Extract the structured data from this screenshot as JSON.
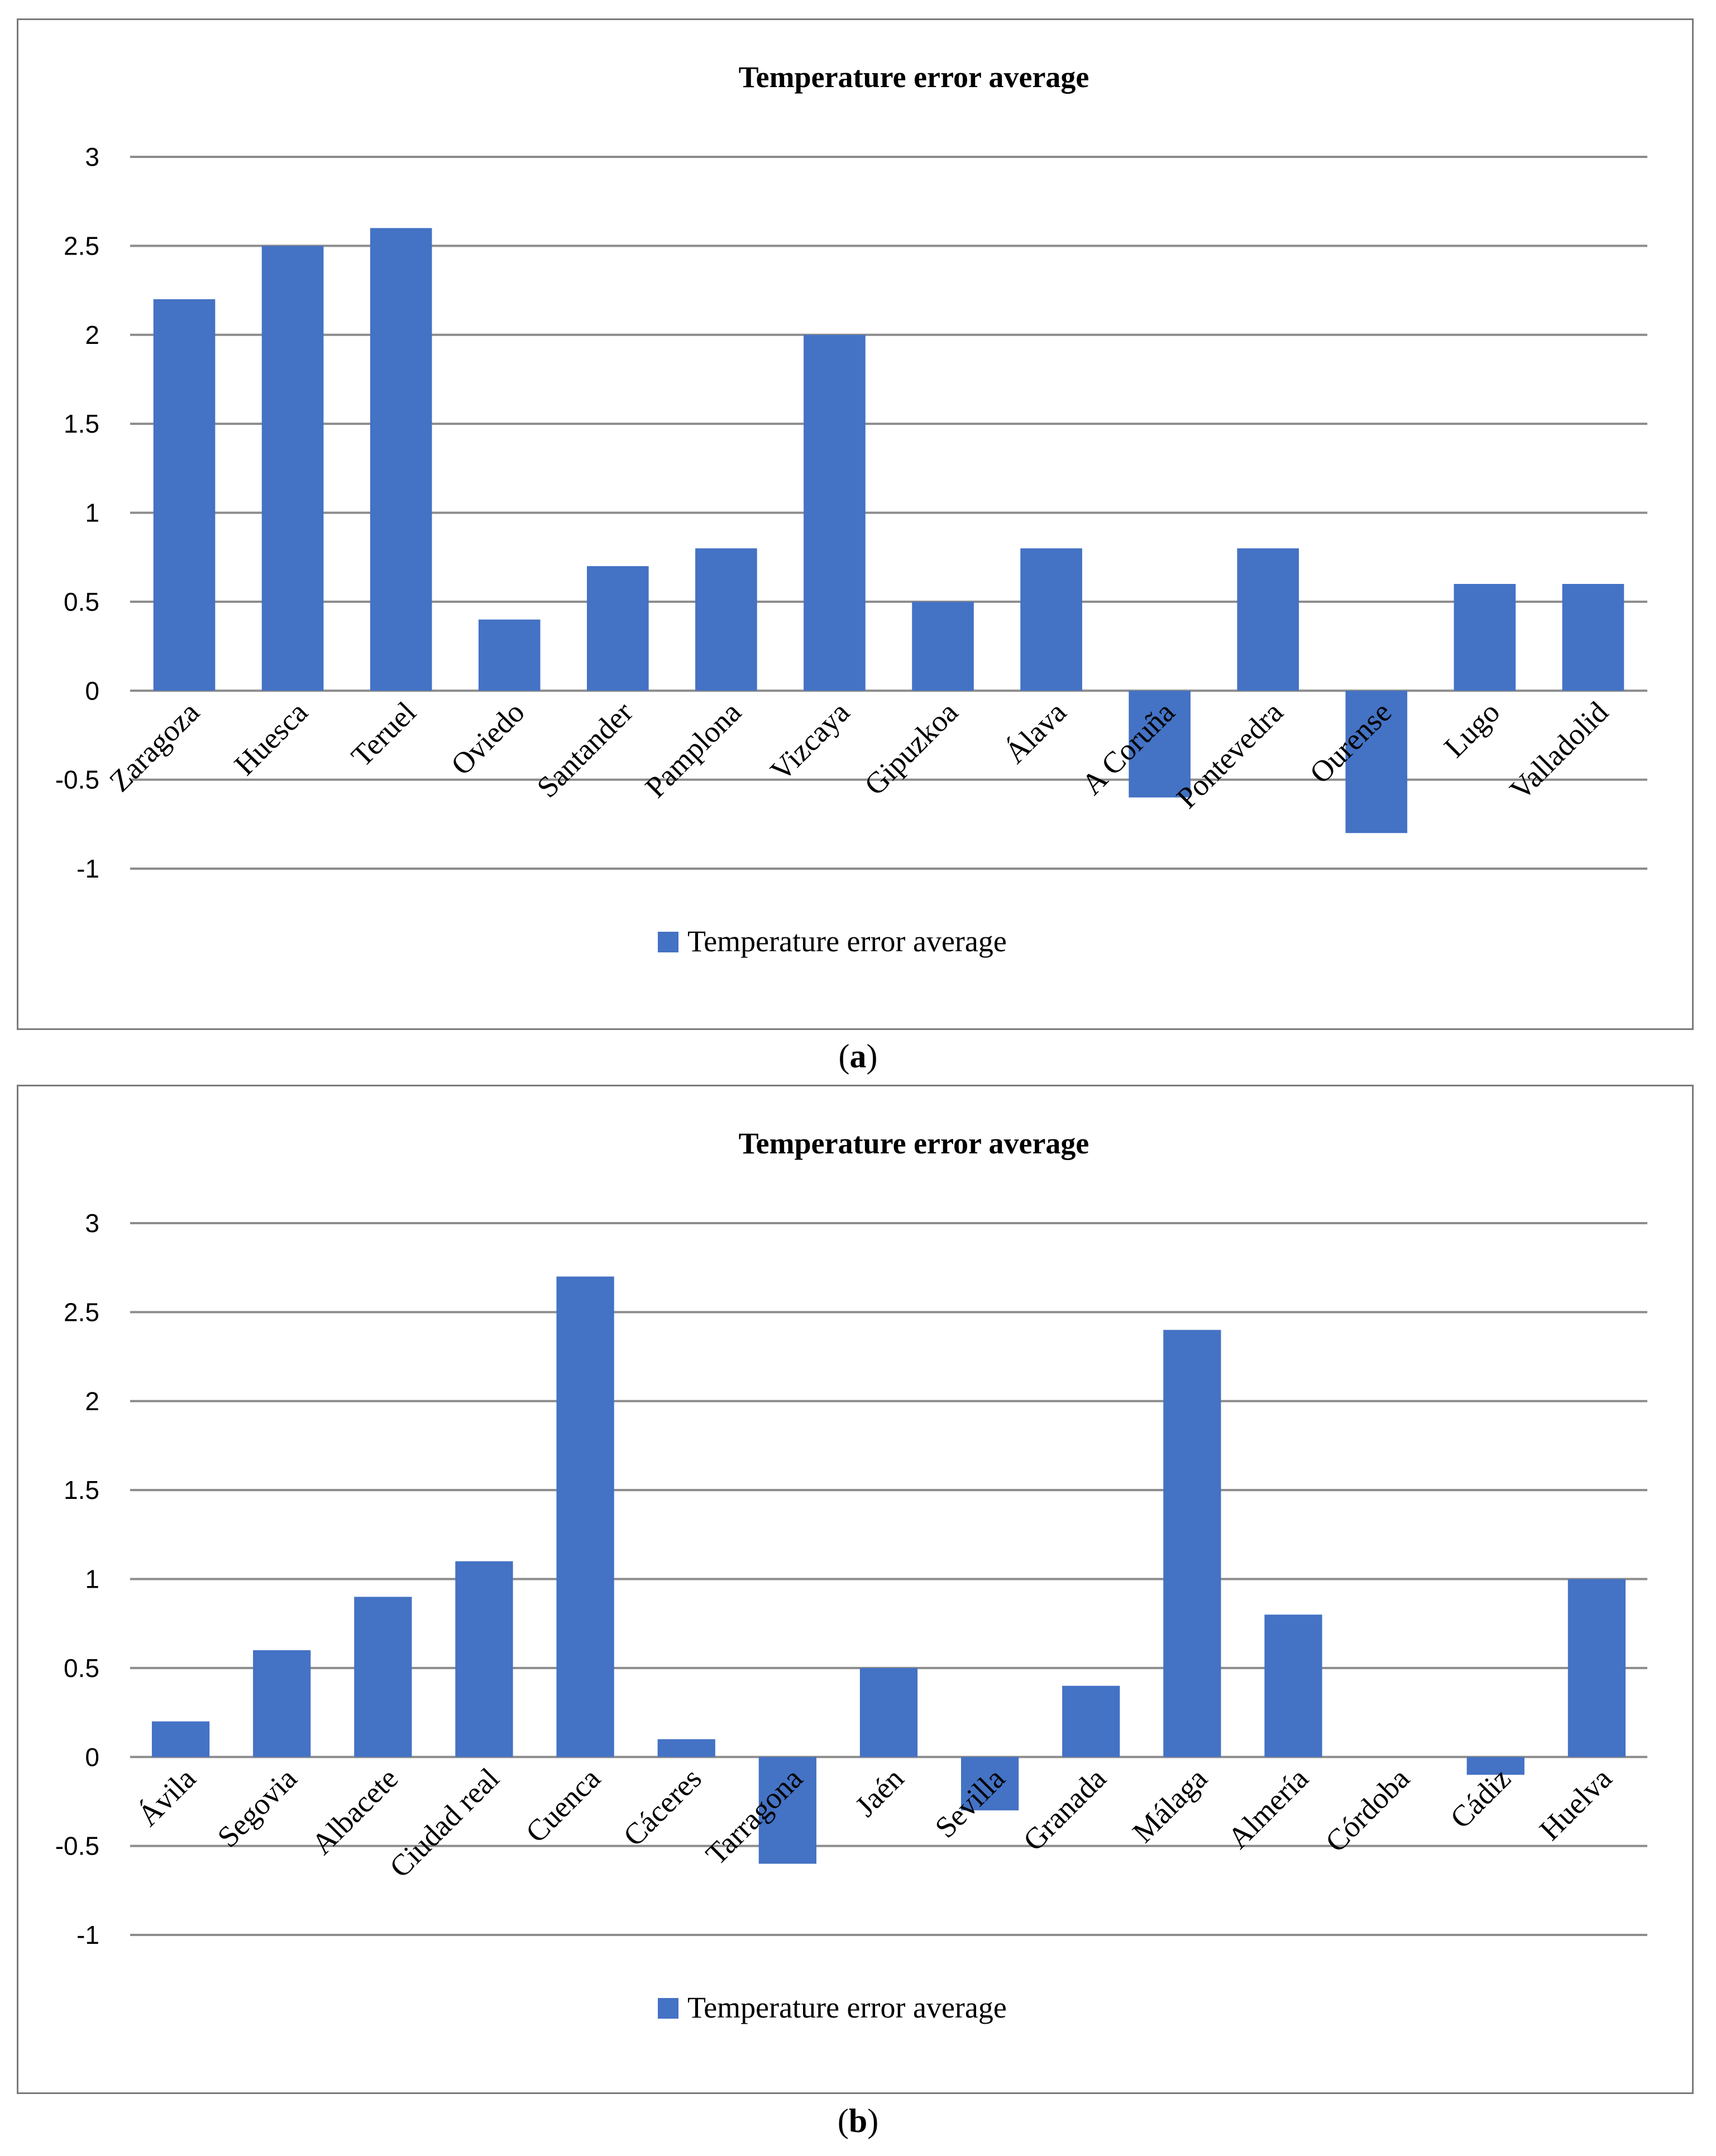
{
  "chart_data": [
    {
      "type": "bar",
      "panel": "a",
      "title": "Temperature error average",
      "categories": [
        "Zaragoza",
        "Huesca",
        "Teruel",
        "Oviedo",
        "Santander",
        "Pamplona",
        "Vizcaya",
        "Gipuzkoa",
        "Álava",
        "A Coruña",
        "Pontevedra",
        "Ourense",
        "Lugo",
        "Valladolid"
      ],
      "series": [
        {
          "name": "Temperature error average",
          "values": [
            2.2,
            2.5,
            2.6,
            0.4,
            0.7,
            0.8,
            2.0,
            0.5,
            0.8,
            -0.6,
            0.8,
            -0.8,
            0.6,
            0.6
          ]
        }
      ],
      "yticks": [
        "3",
        "2.5",
        "2",
        "1.5",
        "1",
        "0.5",
        "0",
        "-0.5",
        "-1"
      ],
      "ylim": [
        -1,
        3
      ],
      "grid": true,
      "legend": "bottom-center",
      "color": "#4472c4"
    },
    {
      "type": "bar",
      "panel": "b",
      "title": "Temperature error average",
      "categories": [
        "Ávila",
        "Segovia",
        "Albacete",
        "Ciudad real",
        "Cuenca",
        "Cáceres",
        "Tarragona",
        "Jaén",
        "Sevilla",
        "Granada",
        "Málaga",
        "Almería",
        "Córdoba",
        "Cádiz",
        "Huelva"
      ],
      "series": [
        {
          "name": "Temperature error average",
          "values": [
            0.2,
            0.6,
            0.9,
            1.1,
            2.7,
            0.1,
            -0.6,
            0.5,
            -0.3,
            0.4,
            2.4,
            0.8,
            0.0,
            -0.1,
            1.0
          ]
        }
      ],
      "yticks": [
        "3",
        "2.5",
        "2",
        "1.5",
        "1",
        "0.5",
        "0",
        "-0.5",
        "-1"
      ],
      "ylim": [
        -1,
        3
      ],
      "grid": true,
      "legend": "bottom-center",
      "color": "#4472c4"
    }
  ],
  "captions": {
    "a": "a",
    "b": "b"
  }
}
